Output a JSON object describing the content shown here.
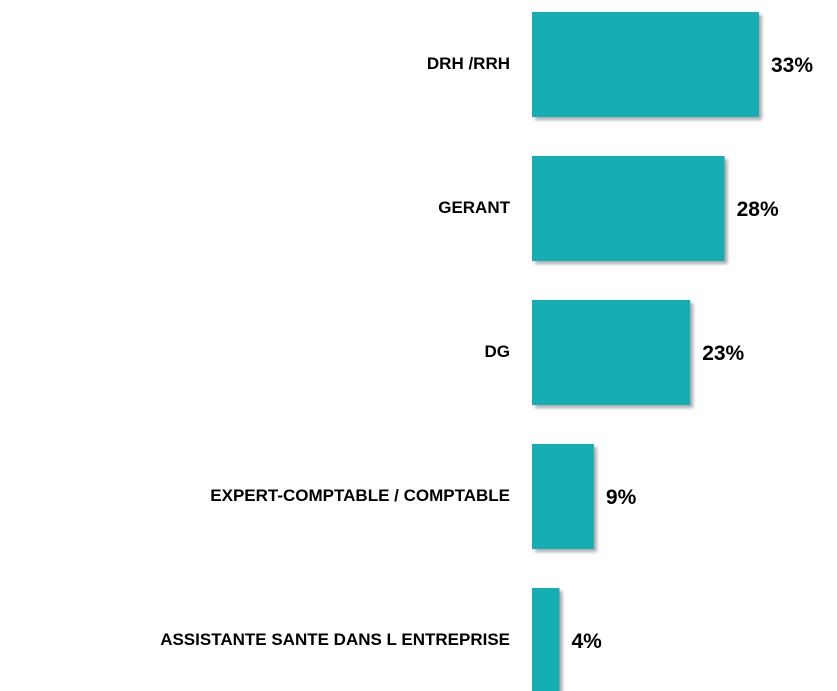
{
  "chart_data": {
    "type": "bar",
    "orientation": "horizontal",
    "categories": [
      "DRH /RRH",
      "GERANT",
      "DG",
      "EXPERT-COMPTABLE / COMPTABLE",
      "ASSISTANTE SANTE DANS L ENTREPRISE"
    ],
    "values": [
      33,
      28,
      23,
      9,
      4
    ],
    "value_labels": [
      "33%",
      "28%",
      "23%",
      "9%",
      "4%"
    ],
    "color": "#14aeb5"
  }
}
